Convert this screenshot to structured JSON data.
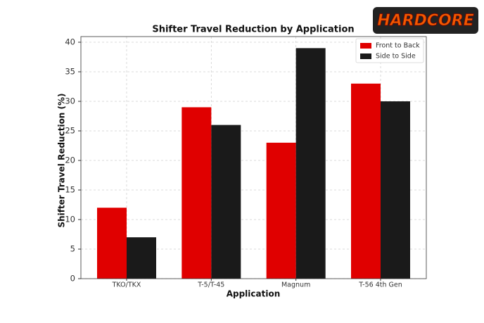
{
  "logo": "HARDCORE",
  "chart_data": {
    "type": "bar",
    "title": "Shifter Travel Reduction by Application",
    "x_label": "Application",
    "y_label": "Shifter Travel Reduction (%)",
    "categories": [
      "TKO/TKX",
      "T-5/T-45",
      "Magnum",
      "T-56 4th Gen"
    ],
    "series": [
      {
        "name": "Front to Back",
        "color": "#e00000",
        "values": [
          12,
          29,
          23,
          33
        ]
      },
      {
        "name": "Side to Side",
        "color": "#1a1a1a",
        "values": [
          7,
          26,
          39,
          30
        ]
      }
    ],
    "ylim": [
      0,
      40
    ],
    "yticks": [
      0,
      5,
      10,
      15,
      20,
      25,
      30,
      35,
      40
    ],
    "grid": true,
    "legend": "upper right"
  }
}
